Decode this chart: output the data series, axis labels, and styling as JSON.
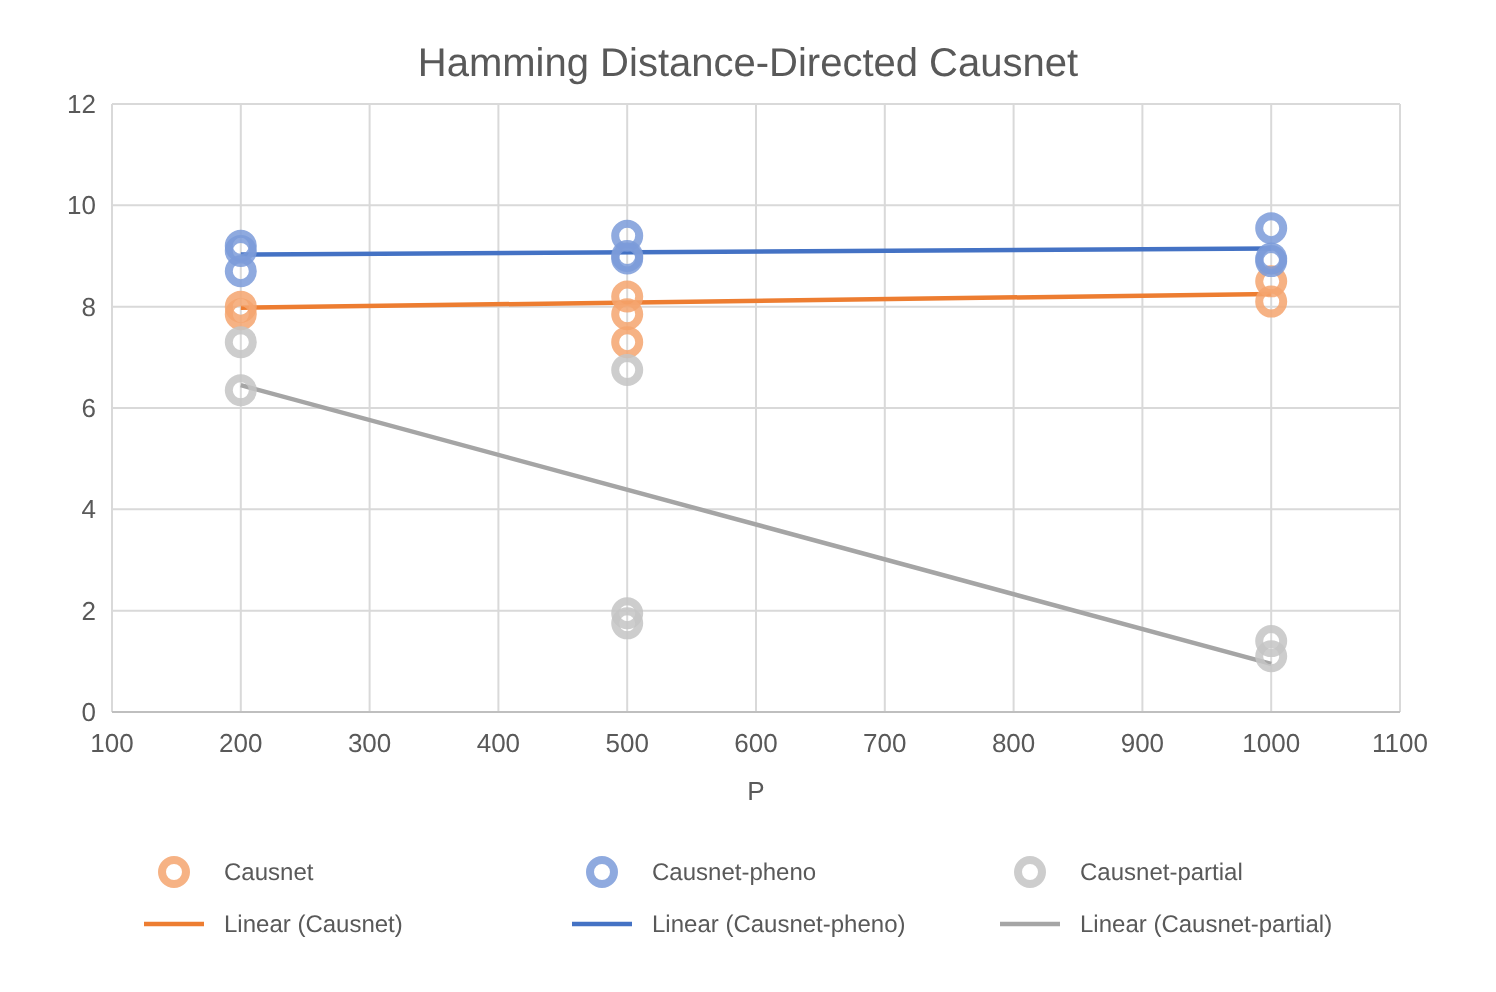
{
  "chart_data": {
    "type": "scatter",
    "title": "Hamming Distance-Directed Causnet",
    "xlabel": "P",
    "xlim": [
      100,
      1100
    ],
    "xticks": [
      100,
      200,
      300,
      400,
      500,
      600,
      700,
      800,
      900,
      1000,
      1100
    ],
    "ylim": [
      0,
      12
    ],
    "yticks": [
      0,
      2,
      4,
      6,
      8,
      10,
      12
    ],
    "grid": true,
    "legend": "bottom",
    "marker": "circle",
    "series": [
      {
        "name": "Causnet",
        "color": "#f4a46e",
        "x": [
          200,
          200,
          500,
          500,
          500,
          1000,
          1000
        ],
        "values": [
          7.85,
          8.0,
          8.2,
          7.85,
          7.3,
          8.5,
          8.1
        ]
      },
      {
        "name": "Causnet-pheno",
        "color": "#7b9bd9",
        "x": [
          200,
          200,
          200,
          500,
          500,
          500,
          1000,
          1000,
          1000
        ],
        "values": [
          9.2,
          9.1,
          8.7,
          9.4,
          9.0,
          8.95,
          9.55,
          8.9,
          8.95
        ]
      },
      {
        "name": "Causnet-partial",
        "color": "#c4c4c4",
        "x": [
          200,
          200,
          500,
          500,
          500,
          1000,
          1000
        ],
        "values": [
          7.3,
          6.35,
          6.75,
          1.95,
          1.75,
          1.4,
          1.1
        ]
      },
      {
        "name": "Linear (Causnet)",
        "type": "line",
        "marker": "none",
        "color": "#ed7d31",
        "x": [
          200,
          1000
        ],
        "values": [
          7.98,
          8.25
        ]
      },
      {
        "name": "Linear (Causnet-pheno)",
        "type": "line",
        "marker": "none",
        "color": "#4472c4",
        "x": [
          200,
          1000
        ],
        "values": [
          9.03,
          9.15
        ]
      },
      {
        "name": "Linear (Causnet-partial)",
        "type": "line",
        "marker": "none",
        "color": "#a5a5a5",
        "x": [
          200,
          1000
        ],
        "values": [
          6.45,
          0.95
        ]
      }
    ]
  }
}
